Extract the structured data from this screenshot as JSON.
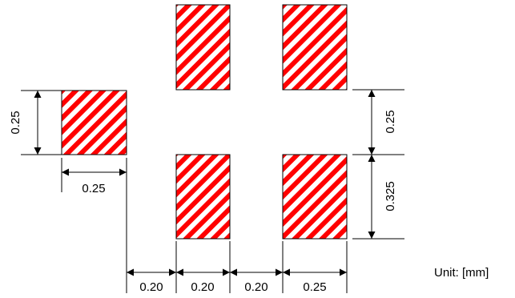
{
  "diagram": {
    "pads": [
      {
        "name": "pad-left"
      },
      {
        "name": "pad-top-1"
      },
      {
        "name": "pad-top-2"
      },
      {
        "name": "pad-bottom-1"
      },
      {
        "name": "pad-bottom-2"
      }
    ],
    "hatch": {
      "stripe_color": "#ff0000",
      "background": "#ffffff",
      "outline": "#000000"
    },
    "dimensions": {
      "left_pad_height": "0.25",
      "left_pad_width": "0.25",
      "right_top_height": "0.25",
      "right_bottom_height": "0.325",
      "bottom_gap_1": "0.20",
      "bottom_pad_width_1": "0.20",
      "bottom_gap_2": "0.20",
      "bottom_pad_width_2": "0.25"
    },
    "unit_label": "Unit: [mm]"
  }
}
